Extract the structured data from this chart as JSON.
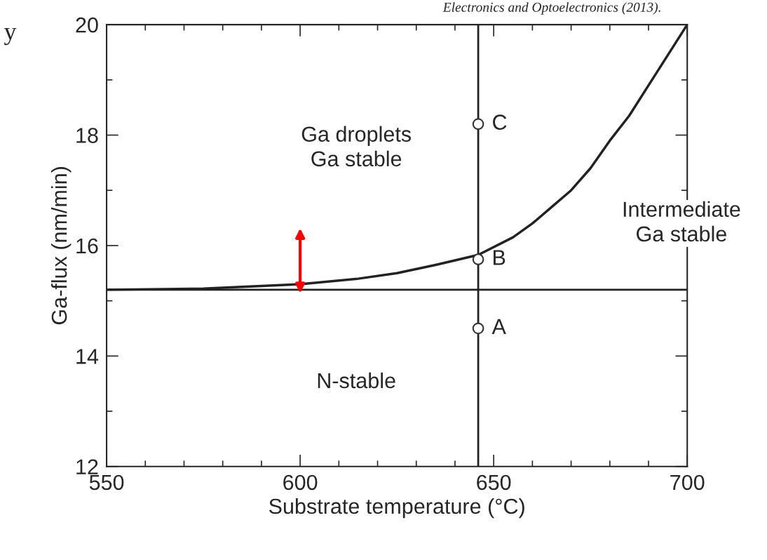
{
  "chart_data": {
    "type": "line",
    "xlabel": "Substrate temperature (°C)",
    "ylabel": "Ga-flux (nm/min)",
    "xlim": [
      550,
      700
    ],
    "ylim": [
      12,
      20
    ],
    "xticks": [
      550,
      600,
      650,
      700
    ],
    "yticks": [
      12,
      14,
      16,
      18,
      20
    ],
    "grid": false,
    "legend": false,
    "series": [
      {
        "color": "#222222",
        "x": [
          550,
          575,
          600,
          615,
          625,
          635,
          646,
          655,
          660,
          665,
          670,
          675,
          680,
          685,
          690,
          695,
          700
        ],
        "values": [
          15.2,
          15.22,
          15.3,
          15.4,
          15.5,
          15.65,
          15.83,
          16.15,
          16.4,
          16.7,
          17.0,
          17.4,
          17.9,
          18.35,
          18.9,
          19.45,
          20.0
        ]
      },
      {
        "type": "scatter",
        "color": "#333333",
        "marker": "circle",
        "x": [
          646,
          646,
          646
        ],
        "values": [
          14.5,
          15.75,
          18.2
        ],
        "value_labels": [
          "A",
          "B",
          "C"
        ]
      }
    ],
    "ref_lines": [
      {
        "axis": "y",
        "value": 15.2,
        "color": "#222222"
      },
      {
        "axis": "x",
        "value": 646,
        "color": "#222222"
      }
    ],
    "annotations": [
      "Ga droplets\nGa stable",
      "Intermediate\nGa stable",
      "N-stable",
      "Electronics and Optoelectronics (2013).",
      "y"
    ]
  }
}
